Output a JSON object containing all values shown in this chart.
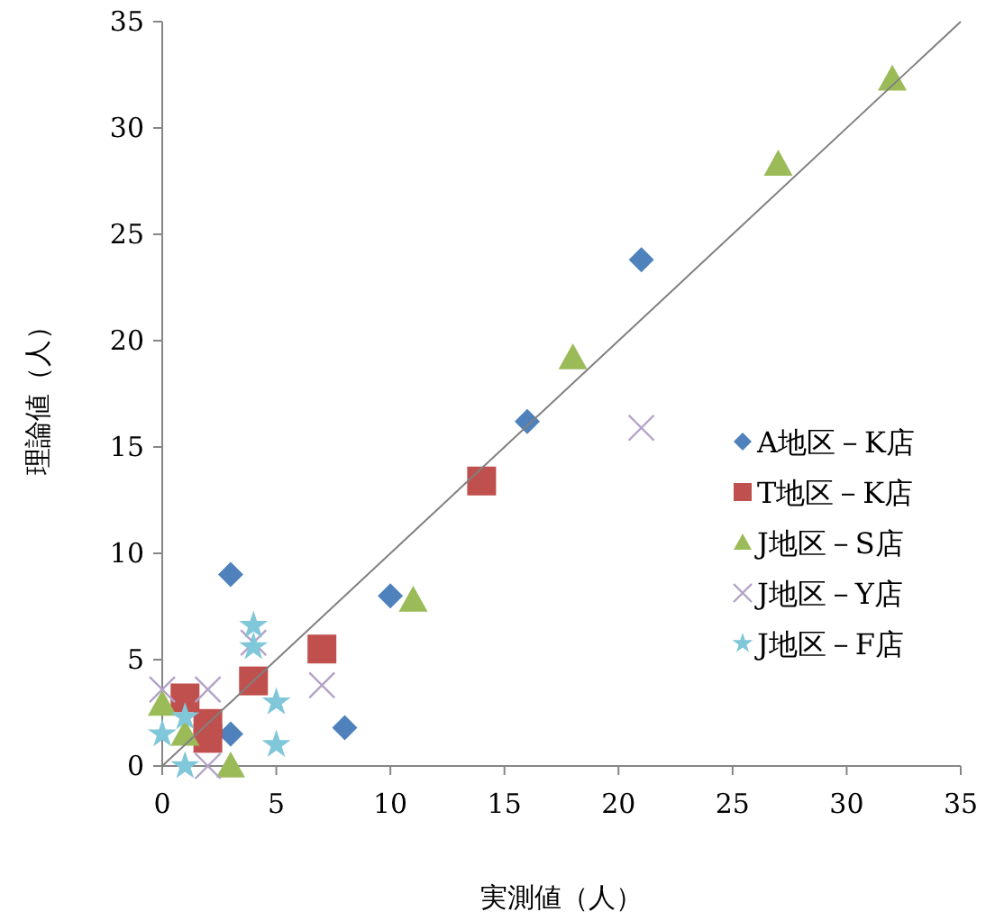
{
  "chart_data": {
    "type": "scatter",
    "xlabel": "実測値（人）",
    "ylabel": "理論値（人）",
    "xlim": [
      0,
      35
    ],
    "ylim": [
      0,
      35
    ],
    "xticks": [
      0,
      5,
      10,
      15,
      20,
      25,
      30,
      35
    ],
    "yticks": [
      0,
      5,
      10,
      15,
      20,
      25,
      30,
      35
    ],
    "grid": false,
    "legend": "right",
    "series": [
      {
        "name": "A地区－K店",
        "color": "#4f81bd",
        "marker": "diamond",
        "x": [
          3,
          10,
          8,
          3,
          16,
          21
        ],
        "values": [
          9,
          8,
          1.8,
          1.5,
          16.2,
          23.8
        ]
      },
      {
        "name": "T地区－K店",
        "color": "#c0504d",
        "marker": "square",
        "x": [
          1,
          2,
          2,
          4,
          7,
          14
        ],
        "values": [
          3.2,
          2,
          1.3,
          4,
          5.5,
          13.4
        ]
      },
      {
        "name": "J地区－S店",
        "color": "#9bbb59",
        "marker": "triangle",
        "x": [
          0,
          1,
          3,
          11,
          18,
          27,
          32
        ],
        "values": [
          2.9,
          1.5,
          0,
          7.8,
          19.2,
          28.3,
          32.3
        ]
      },
      {
        "name": "J地区－Y店",
        "color": "#b3a2c7",
        "marker": "cross",
        "x": [
          0,
          2,
          2,
          4,
          7,
          21
        ],
        "values": [
          3.6,
          3.6,
          0,
          5.8,
          3.8,
          15.9
        ]
      },
      {
        "name": "J地区－F店",
        "color": "#7fc7d9",
        "marker": "star",
        "x": [
          0,
          1,
          1,
          4,
          4,
          5,
          5
        ],
        "values": [
          1.5,
          2.3,
          0,
          6.6,
          5.6,
          3,
          1
        ]
      },
      {
        "type": "line",
        "color": "#808080",
        "marker": "none",
        "x": [
          0,
          35
        ],
        "values": [
          0,
          35
        ]
      }
    ]
  }
}
